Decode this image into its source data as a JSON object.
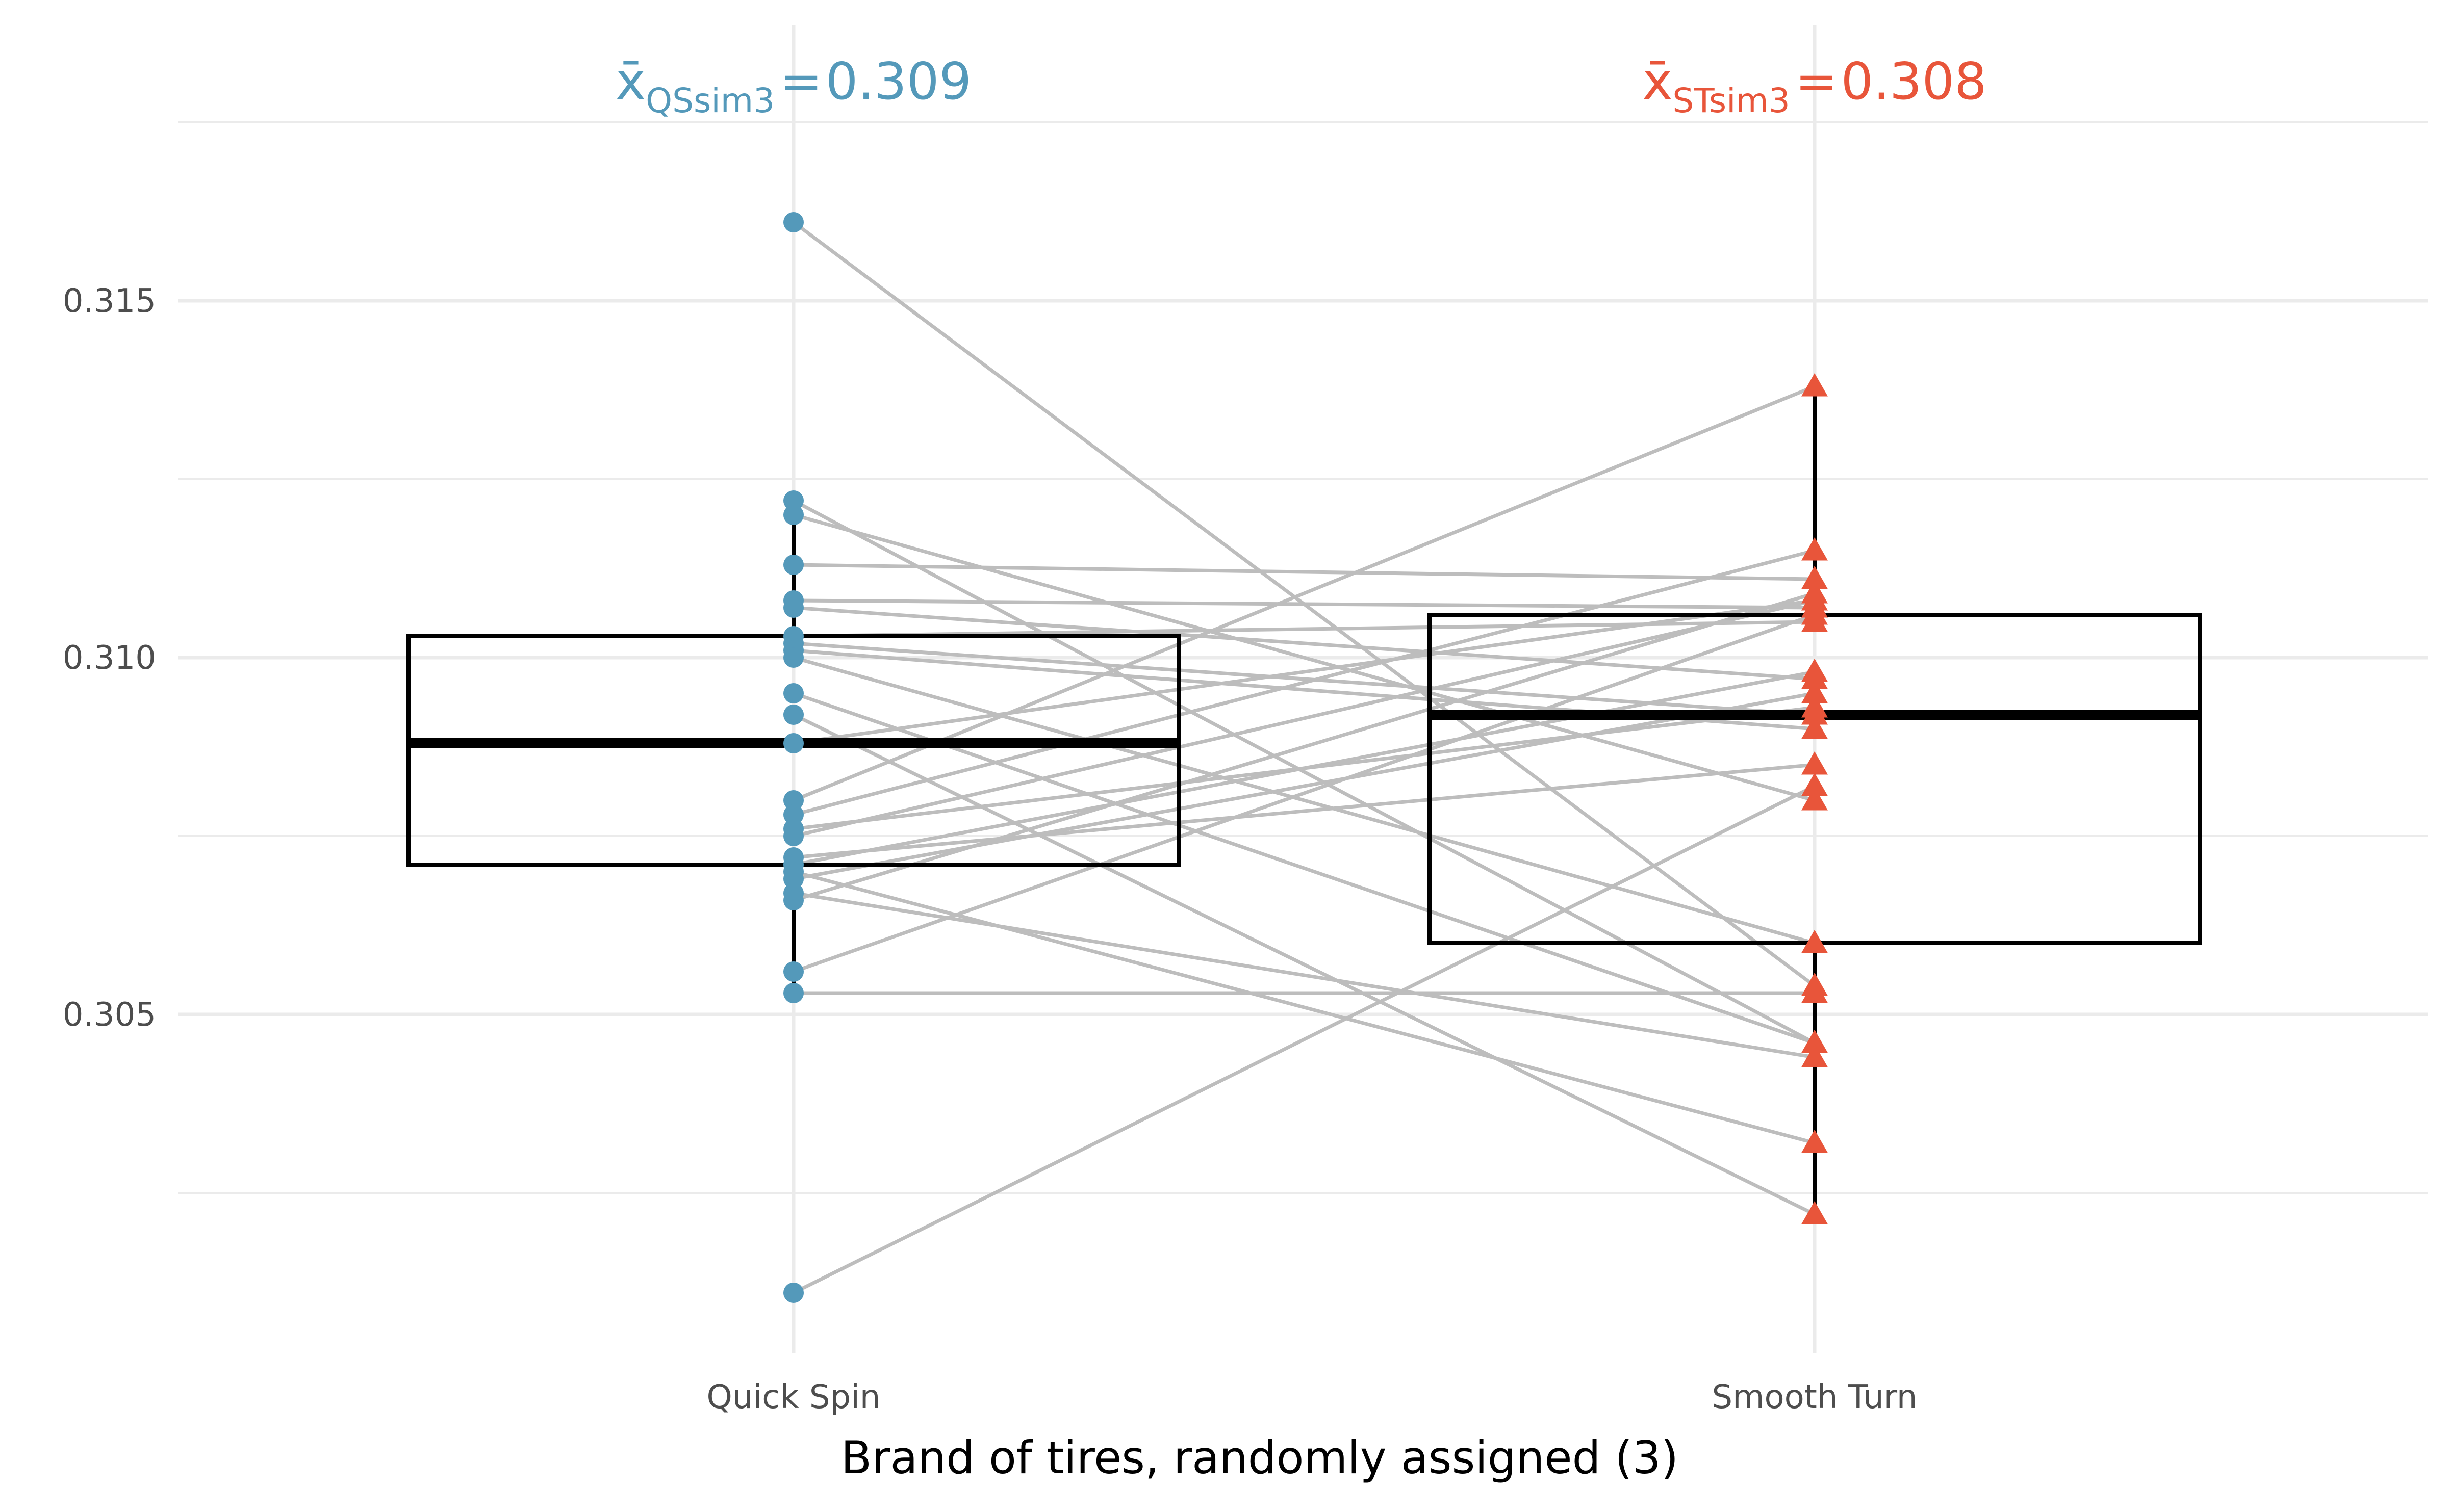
{
  "chart_data": {
    "type": "box",
    "xlabel": "Brand of tires, randomly assigned (3)",
    "ylabel": "",
    "ylim": [
      0.3002,
      0.3175
    ],
    "yticks": [
      0.305,
      0.31,
      0.315
    ],
    "ytick_labels": [
      "0.305",
      "0.310",
      "0.315"
    ],
    "grid": true,
    "categories": [
      "Quick Spin",
      "Smooth Turn"
    ],
    "colors": {
      "Quick Spin": "#5499BA",
      "Smooth Turn": "#E8553A",
      "pair_line": "#BDBDBD",
      "grid": "#EBEBEB"
    },
    "markers": {
      "Quick Spin": "circle",
      "Smooth Turn": "triangle"
    },
    "mean_annotations": [
      {
        "category": "Quick Spin",
        "symbol": "x̄",
        "subscript": "QSsim3",
        "equals": "=",
        "value": "0.309",
        "color": "#5499BA"
      },
      {
        "category": "Smooth Turn",
        "symbol": "x̄",
        "subscript": "STsim3",
        "equals": "=",
        "value": "0.308",
        "color": "#E8553A"
      }
    ],
    "boxes": [
      {
        "category": "Quick Spin",
        "q1": 0.3071,
        "median": 0.3088,
        "q3": 0.3103,
        "whisker_low": 0.3053,
        "whisker_high": 0.3122
      },
      {
        "category": "Smooth Turn",
        "q1": 0.306,
        "median": 0.3092,
        "q3": 0.3106,
        "whisker_low": 0.3022,
        "whisker_high": 0.3138
      }
    ],
    "pairs": [
      [
        0.3161,
        0.3054
      ],
      [
        0.3122,
        0.3046
      ],
      [
        0.312,
        0.308
      ],
      [
        0.3113,
        0.3111
      ],
      [
        0.3108,
        0.3107
      ],
      [
        0.3107,
        0.3097
      ],
      [
        0.3103,
        0.3105
      ],
      [
        0.3102,
        0.3092
      ],
      [
        0.3101,
        0.309
      ],
      [
        0.31,
        0.306
      ],
      [
        0.3095,
        0.3046
      ],
      [
        0.3092,
        0.3022
      ],
      [
        0.3088,
        0.3108
      ],
      [
        0.308,
        0.3138
      ],
      [
        0.3078,
        0.3115
      ],
      [
        0.3076,
        0.3093
      ],
      [
        0.3075,
        0.3108
      ],
      [
        0.3072,
        0.3085
      ],
      [
        0.3071,
        0.3098
      ],
      [
        0.307,
        0.3032
      ],
      [
        0.3069,
        0.3095
      ],
      [
        0.3067,
        0.3044
      ],
      [
        0.3066,
        0.3109
      ],
      [
        0.3056,
        0.3106
      ],
      [
        0.3053,
        0.3053
      ],
      [
        0.3011,
        0.3082
      ]
    ]
  }
}
